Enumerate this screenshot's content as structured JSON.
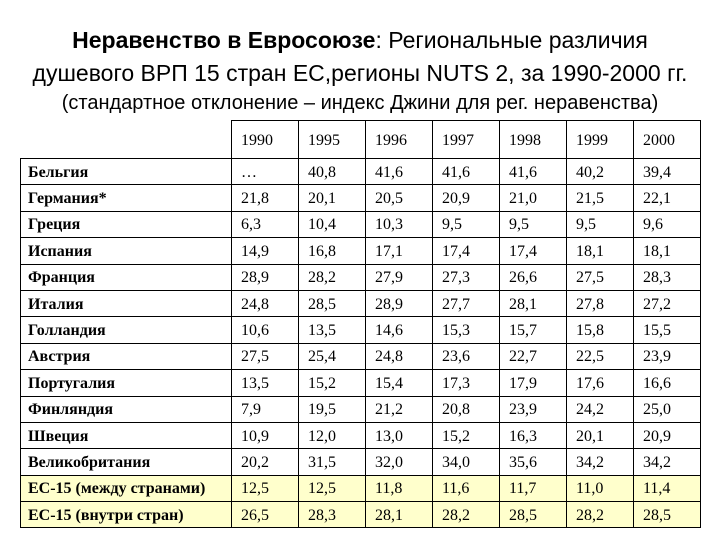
{
  "title": {
    "line1_bold": "Неравенство в Евросоюзе",
    "line1_rest": ": Региональные различия",
    "line2": "душевого ВРП 15 стран ЕС,регионы NUTS 2, за 1990-2000 гг.",
    "subtitle": "(стандартное отклонение – индекс Джини для рег. неравенства)"
  },
  "table": {
    "highlight_color": "#FFFFCC",
    "headers": [
      "1990",
      "1995",
      "1996",
      "1997",
      "1998",
      "1999",
      "2000"
    ],
    "rows": [
      {
        "label": "Бельгия",
        "values": [
          "…",
          "40,8",
          "41,6",
          "41,6",
          "41,6",
          "40,2",
          "39,4"
        ]
      },
      {
        "label": "Германия*",
        "values": [
          "21,8",
          "20,1",
          "20,5",
          "20,9",
          "21,0",
          "21,5",
          "22,1"
        ]
      },
      {
        "label": "Греция",
        "values": [
          "6,3",
          "10,4",
          "10,3",
          "9,5",
          "9,5",
          "9,5",
          "9,6"
        ]
      },
      {
        "label": "Испания",
        "values": [
          "14,9",
          "16,8",
          "17,1",
          "17,4",
          "17,4",
          "18,1",
          "18,1"
        ]
      },
      {
        "label": "Франция",
        "values": [
          "28,9",
          "28,2",
          "27,9",
          "27,3",
          "26,6",
          "27,5",
          "28,3"
        ]
      },
      {
        "label": "Италия",
        "values": [
          "24,8",
          "28,5",
          "28,9",
          "27,7",
          "28,1",
          "27,8",
          "27,2"
        ]
      },
      {
        "label": "Голландия",
        "values": [
          "10,6",
          "13,5",
          "14,6",
          "15,3",
          "15,7",
          "15,8",
          "15,5"
        ]
      },
      {
        "label": "Австрия",
        "values": [
          "27,5",
          "25,4",
          "24,8",
          "23,6",
          "22,7",
          "22,5",
          "23,9"
        ]
      },
      {
        "label": "Португалия",
        "values": [
          "13,5",
          "15,2",
          "15,4",
          "17,3",
          "17,9",
          "17,6",
          "16,6"
        ]
      },
      {
        "label": "Финляндия",
        "values": [
          "7,9",
          "19,5",
          "21,2",
          "20,8",
          "23,9",
          "24,2",
          "25,0"
        ]
      },
      {
        "label": "Швеция",
        "values": [
          "10,9",
          "12,0",
          "13,0",
          "15,2",
          "16,3",
          "20,1",
          "20,9"
        ]
      },
      {
        "label": "Великобритания",
        "values": [
          "20,2",
          "31,5",
          "32,0",
          "34,0",
          "35,6",
          "34,2",
          "34,2"
        ]
      },
      {
        "label": "ЕС-15 (между странами)",
        "highlighted": true,
        "values": [
          "12,5",
          "12,5",
          "11,8",
          "11,6",
          "11,7",
          "11,0",
          "11,4"
        ]
      },
      {
        "label": "ЕС-15 (внутри стран)",
        "highlighted": true,
        "values": [
          "26,5",
          "28,3",
          "28,1",
          "28,2",
          "28,5",
          "28,2",
          "28,5"
        ]
      }
    ]
  }
}
